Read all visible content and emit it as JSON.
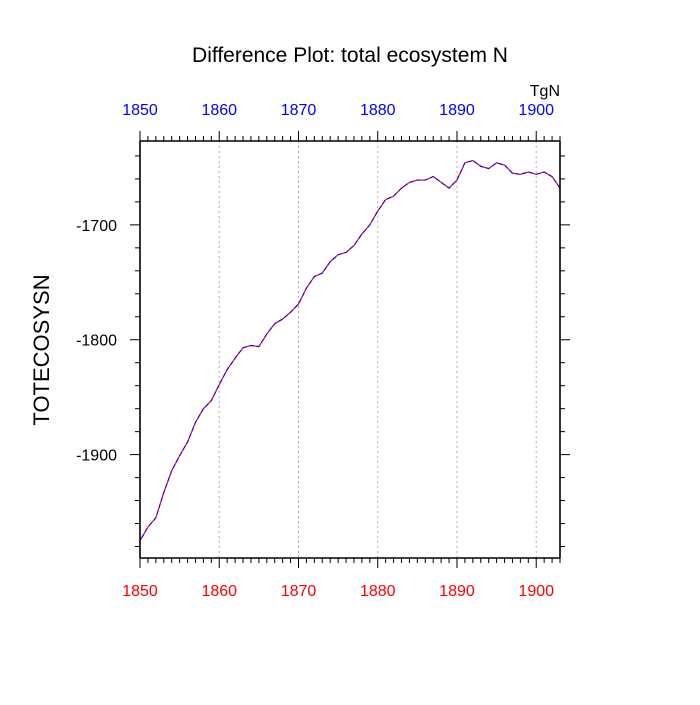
{
  "chart_data": {
    "type": "line",
    "title": "Difference Plot: total ecosystem N",
    "ylabel": "TOTECOSYSN",
    "units": "TgN",
    "xlim": [
      1850,
      1903
    ],
    "ylim": [
      -1990,
      -1627
    ],
    "x_ticks": [
      1850,
      1860,
      1870,
      1880,
      1890,
      1900
    ],
    "y_ticks": [
      -1700,
      -1800,
      -1900
    ],
    "grid_x": true,
    "grid_y": false,
    "top_axis_color": "#0000ff",
    "bottom_axis_color": "#ff0000",
    "series": [
      {
        "color_primary": "#ff0000",
        "color_secondary": "#0000ff",
        "x": [
          1850,
          1851,
          1852,
          1853,
          1854,
          1855,
          1856,
          1857,
          1858,
          1859,
          1860,
          1861,
          1862,
          1863,
          1864,
          1865,
          1866,
          1867,
          1868,
          1869,
          1870,
          1871,
          1872,
          1873,
          1874,
          1875,
          1876,
          1877,
          1878,
          1879,
          1880,
          1881,
          1882,
          1883,
          1884,
          1885,
          1886,
          1887,
          1888,
          1889,
          1890,
          1891,
          1892,
          1893,
          1894,
          1895,
          1896,
          1897,
          1898,
          1899,
          1900,
          1901,
          1902,
          1903
        ],
        "y": [
          -1975,
          -1963,
          -1955,
          -1933,
          -1914,
          -1901,
          -1889,
          -1872,
          -1860,
          -1853,
          -1839,
          -1826,
          -1816,
          -1807,
          -1805,
          -1806,
          -1795,
          -1786,
          -1782,
          -1776,
          -1769,
          -1755,
          -1745,
          -1742,
          -1732,
          -1726,
          -1724,
          -1718,
          -1708,
          -1700,
          -1688,
          -1678,
          -1675,
          -1668,
          -1663,
          -1661,
          -1661,
          -1658,
          -1663,
          -1668,
          -1661,
          -1646,
          -1644,
          -1649,
          -1651,
          -1646,
          -1648,
          -1655,
          -1656,
          -1654,
          -1656,
          -1654,
          -1658,
          -1668
        ]
      }
    ]
  }
}
